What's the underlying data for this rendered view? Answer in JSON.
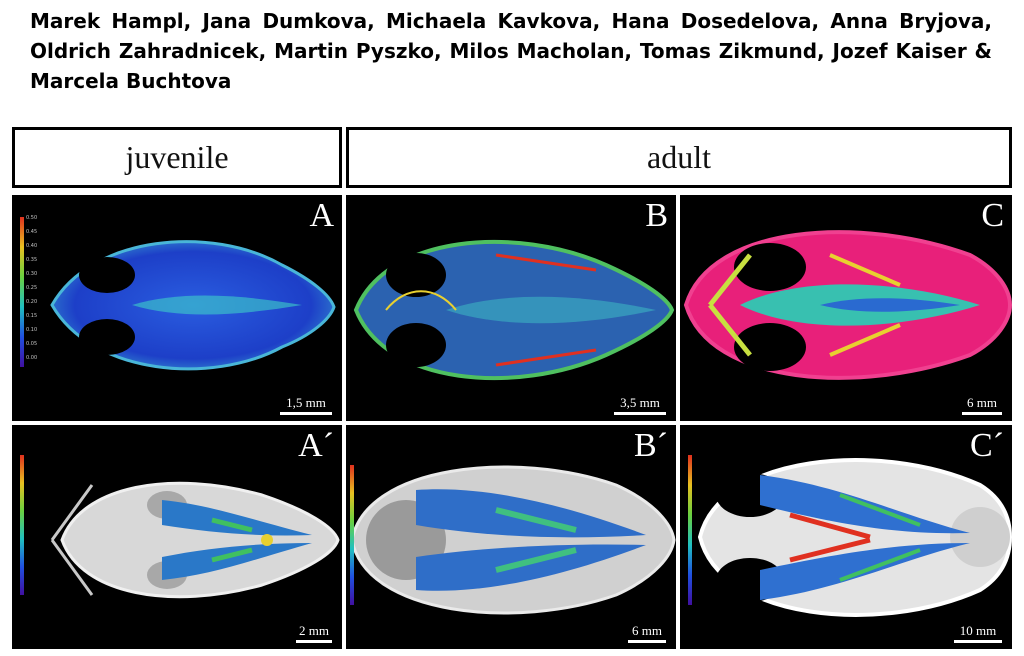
{
  "authors": "Marek Hampl, Jana Dumkova, Michaela Kavkova, Hana Dosedelova, Anna Bryjova, Oldrich Zahradnicek, Martin Pyszko, Milos Macholan, Tomas Zikmund, Jozef Kaiser & Marcela Buchtova",
  "headers": {
    "juvenile": "juvenile",
    "adult": "adult"
  },
  "colorbar_ticks": [
    "0.50",
    "0.45",
    "0.40",
    "0.35",
    "0.30",
    "0.25",
    "0.20",
    "0.15",
    "0.10",
    "0.05",
    "0.00"
  ],
  "panels": [
    {
      "label": "A",
      "scale": "1,5 mm",
      "style": "blue"
    },
    {
      "label": "B",
      "scale": "3,5 mm",
      "style": "teal"
    },
    {
      "label": "C",
      "scale": "6 mm",
      "style": "magenta"
    },
    {
      "label": "A´",
      "scale": "2 mm",
      "style": "grey"
    },
    {
      "label": "B´",
      "scale": "6 mm",
      "style": "grey"
    },
    {
      "label": "C´",
      "scale": "10 mm",
      "style": "white"
    }
  ]
}
